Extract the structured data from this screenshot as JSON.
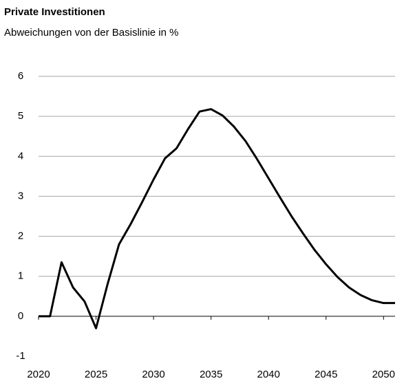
{
  "chart_data": {
    "type": "line",
    "title": "Private Investitionen",
    "subtitle": "Abweichungen von der Basislinie in %",
    "x": [
      2020,
      2021,
      2022,
      2023,
      2024,
      2025,
      2026,
      2027,
      2028,
      2029,
      2030,
      2031,
      2032,
      2033,
      2034,
      2035,
      2036,
      2037,
      2038,
      2039,
      2040,
      2041,
      2042,
      2043,
      2044,
      2045,
      2046,
      2047,
      2048,
      2049,
      2050,
      2051
    ],
    "series": [
      {
        "color": "#000000",
        "values": [
          0,
          0,
          1.35,
          0.72,
          0.37,
          -0.3,
          0.8,
          1.8,
          2.3,
          2.85,
          3.42,
          3.95,
          4.2,
          4.68,
          5.12,
          5.18,
          5.02,
          4.74,
          4.38,
          3.93,
          3.45,
          2.97,
          2.5,
          2.07,
          1.66,
          1.3,
          0.98,
          0.72,
          0.53,
          0.4,
          0.33,
          0.33
        ]
      }
    ],
    "xlim": [
      2020,
      2051
    ],
    "xticks": [
      2020,
      2025,
      2030,
      2035,
      2040,
      2045,
      2050
    ],
    "ylim": [
      -1,
      6
    ],
    "yticks": [
      -1,
      0,
      1,
      2,
      3,
      4,
      5,
      6
    ],
    "grid": true
  }
}
